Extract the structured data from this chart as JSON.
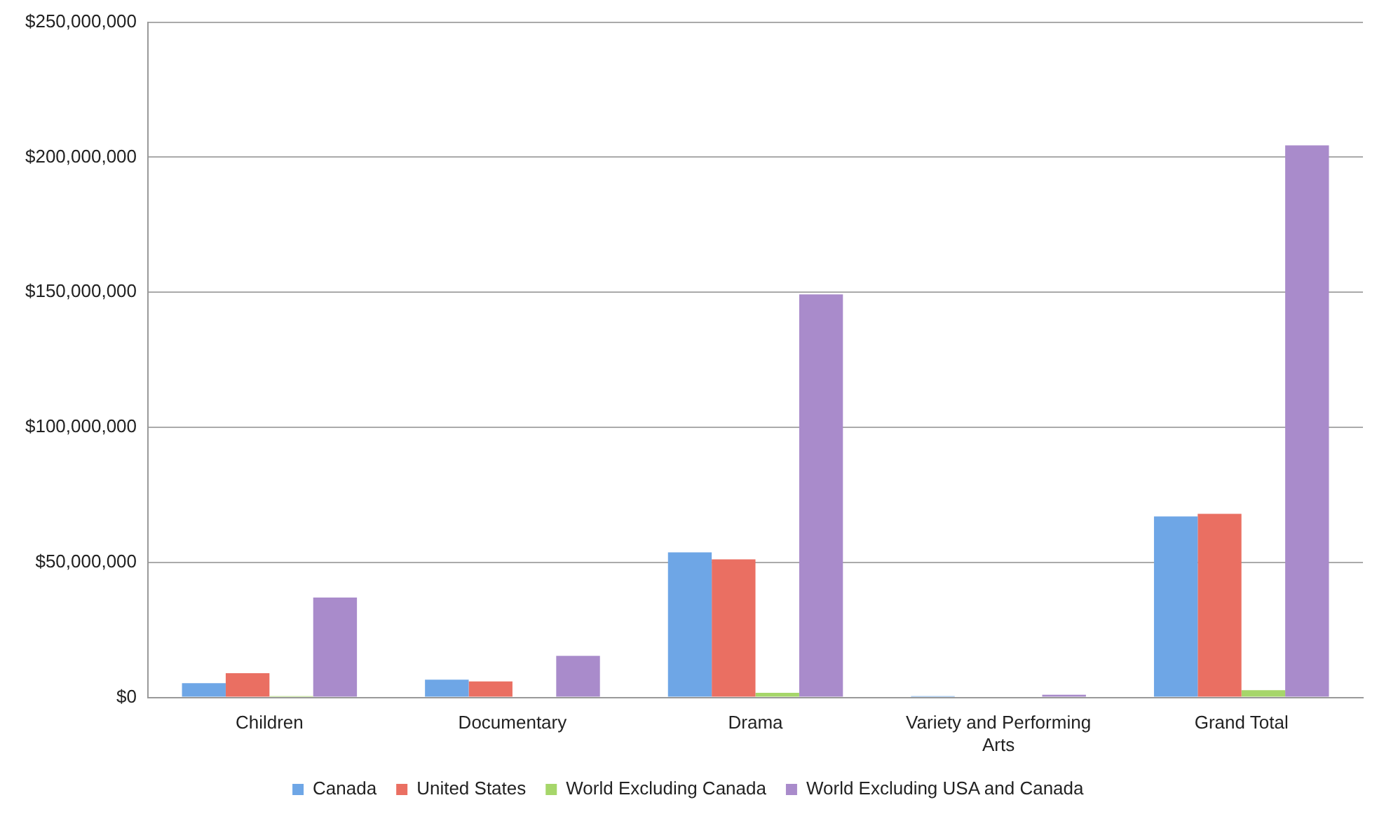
{
  "chart_data": {
    "type": "bar",
    "categories": [
      "Children",
      "Documentary",
      "Drama",
      "Variety and Performing Arts",
      "Grand Total"
    ],
    "series": [
      {
        "name": "Canada",
        "color": "#6ea6e6",
        "values": [
          5300000,
          6600000,
          53700000,
          500000,
          67000000
        ]
      },
      {
        "name": "United States",
        "color": "#ea6f62",
        "values": [
          9000000,
          5900000,
          51100000,
          0,
          68000000
        ]
      },
      {
        "name": "World Excluding Canada",
        "color": "#a6d66a",
        "values": [
          500000,
          null,
          1700000,
          0,
          2700000
        ]
      },
      {
        "name": "World Excluding USA and Canada",
        "color": "#a98bcb",
        "values": [
          37000000,
          15400000,
          149200000,
          1000000,
          204400000
        ]
      }
    ],
    "ylim": [
      0,
      250000000
    ],
    "yticks": [
      {
        "value": 0,
        "label": "$0"
      },
      {
        "value": 50000000,
        "label": "$50,000,000"
      },
      {
        "value": 100000000,
        "label": "$100,000,000"
      },
      {
        "value": 150000000,
        "label": "$150,000,000"
      },
      {
        "value": 200000000,
        "label": "$200,000,000"
      },
      {
        "value": 250000000,
        "label": "$250,000,000"
      }
    ],
    "grid": "y",
    "legend": "bottom"
  }
}
